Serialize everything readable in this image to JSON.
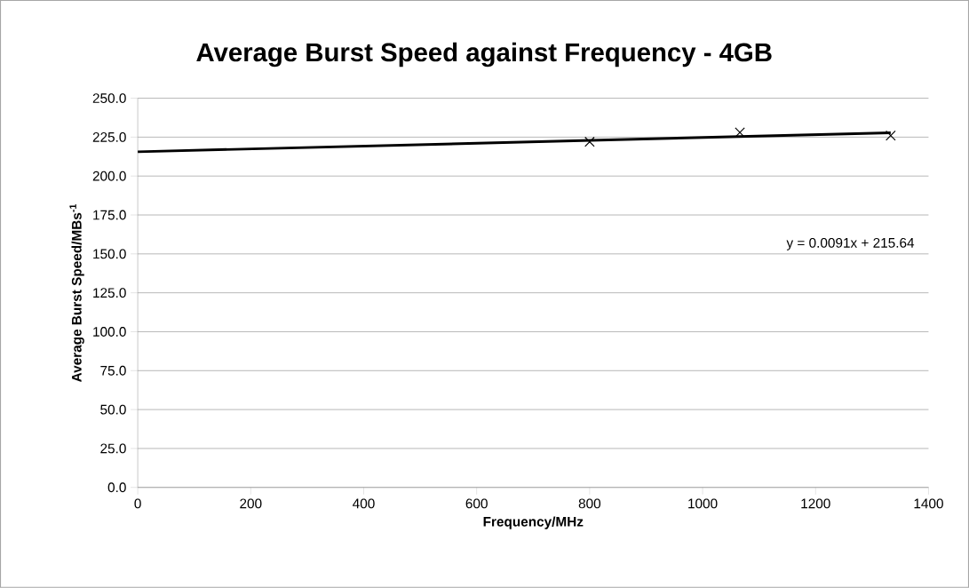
{
  "chart_data": {
    "type": "scatter",
    "title": "Average Burst Speed against Frequency - 4GB",
    "xlabel": "Frequency/MHz",
    "ylabel": "Average Burst Speed/MBs$^{-1}$",
    "series": [
      {
        "color": "#000000",
        "marker": "cross",
        "x": [
          800,
          1066,
          1333
        ],
        "values": [
          222,
          228,
          226
        ]
      },
      {
        "type": "line",
        "color": "#000000",
        "marker": "none",
        "line_style": "solid",
        "x": [
          0,
          1333
        ],
        "values": [
          215.6,
          227.8
        ]
      }
    ],
    "annotations": [
      "y = 0.0091x + 215.64"
    ],
    "xlim": [
      0,
      1400
    ],
    "xticks": [
      0,
      200,
      400,
      600,
      800,
      1000,
      1200,
      1400
    ],
    "ylim": [
      0,
      250
    ],
    "yticks": [
      {
        "value": 0,
        "label": "0.0"
      },
      {
        "value": 25,
        "label": "25.0"
      },
      {
        "value": 50,
        "label": "50.0"
      },
      {
        "value": 75,
        "label": "75.0"
      },
      {
        "value": 100,
        "label": "100.0"
      },
      {
        "value": 125,
        "label": "125.0"
      },
      {
        "value": 150,
        "label": "150.0"
      },
      {
        "value": 175,
        "label": "175.0"
      },
      {
        "value": 200,
        "label": "200.0"
      },
      {
        "value": 225,
        "label": "225.0"
      },
      {
        "value": 250,
        "label": "250.0"
      }
    ],
    "grid": "y"
  }
}
